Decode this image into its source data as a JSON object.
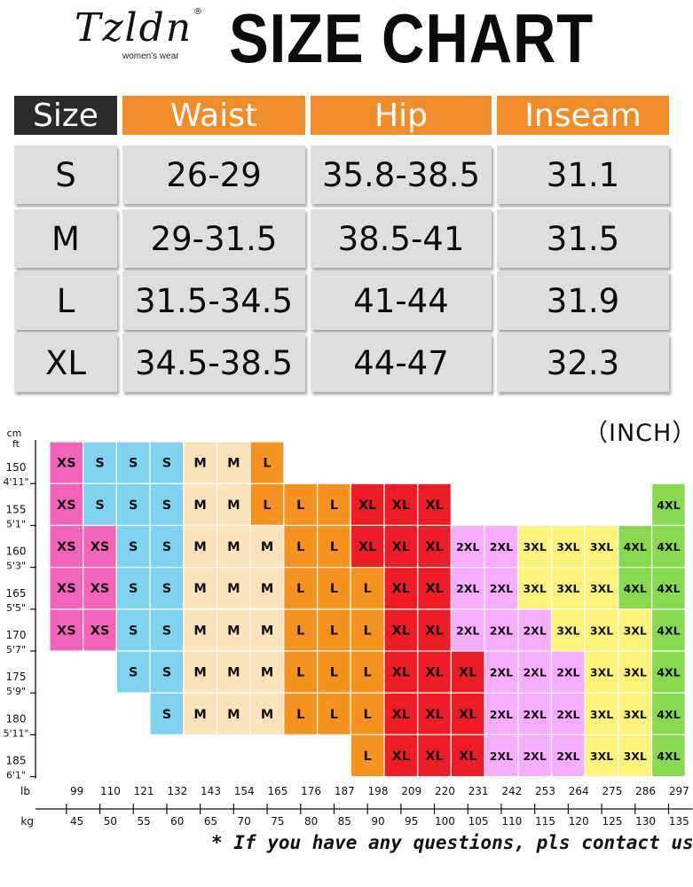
{
  "brand": {
    "name": "Tzldn",
    "registered": "®",
    "subtitle": "women's wear"
  },
  "title": "SIZE CHART",
  "unit_label": "（INCH）",
  "footnote": "* If you have any questions, pls contact us.",
  "colors": {
    "header_dark": "#2a2a2a",
    "header_orange": "#f08c2a",
    "cell_gray": "#dedede",
    "XS": "#f464bd",
    "S": "#7fd3ef",
    "M": "#fde3bb",
    "L": "#f6931f",
    "XL": "#ee1c24",
    "2XL": "#f6aefc",
    "3XL": "#fef37a",
    "4XL": "#88d94e"
  },
  "chart_data": [
    {
      "type": "table",
      "columns": [
        "Size",
        "Waist",
        "Hip",
        "Inseam"
      ],
      "rows": [
        [
          "S",
          "26-29",
          "35.8-38.5",
          "31.1"
        ],
        [
          "M",
          "29-31.5",
          "38.5-41",
          "31.5"
        ],
        [
          "L",
          "31.5-34.5",
          "41-44",
          "31.9"
        ],
        [
          "XL",
          "34.5-38.5",
          "44-47",
          "32.3"
        ]
      ]
    },
    {
      "type": "heatmap",
      "y_axis": {
        "unit_cm": "cm",
        "unit_ft": "ft",
        "cm": [
          "150",
          "155",
          "160",
          "165",
          "170",
          "175",
          "180",
          "185"
        ],
        "ft": [
          "4'11\"",
          "5'1\"",
          "5'3\"",
          "5'5\"",
          "5'7\"",
          "5'9\"",
          "5'11\"",
          "6'1\""
        ]
      },
      "x_axis": {
        "unit_lb": "lb",
        "unit_kg": "kg",
        "lb": [
          "99",
          "110",
          "121",
          "132",
          "143",
          "154",
          "165",
          "176",
          "187",
          "198",
          "209",
          "220",
          "231",
          "242",
          "253",
          "264",
          "275",
          "286",
          "297"
        ],
        "kg": [
          "45",
          "50",
          "55",
          "60",
          "65",
          "70",
          "75",
          "80",
          "85",
          "90",
          "95",
          "100",
          "105",
          "110",
          "115",
          "120",
          "125",
          "130",
          "135"
        ]
      },
      "rows": [
        [
          "XS",
          "S",
          "S",
          "S",
          "M",
          "M",
          "L",
          "",
          "",
          "",
          "",
          "",
          "",
          "",
          "",
          "",
          "",
          "",
          ""
        ],
        [
          "XS",
          "S",
          "S",
          "S",
          "M",
          "M",
          "L",
          "L",
          "L",
          "XL",
          "XL",
          "XL",
          "",
          "",
          "",
          "",
          "",
          "",
          "4XL"
        ],
        [
          "XS",
          "XS",
          "S",
          "S",
          "M",
          "M",
          "M",
          "L",
          "L",
          "XL",
          "XL",
          "XL",
          "2XL",
          "2XL",
          "3XL",
          "3XL",
          "3XL",
          "4XL",
          "4XL"
        ],
        [
          "XS",
          "XS",
          "S",
          "S",
          "M",
          "M",
          "M",
          "L",
          "L",
          "L",
          "XL",
          "XL",
          "2XL",
          "2XL",
          "3XL",
          "3XL",
          "3XL",
          "4XL",
          "4XL"
        ],
        [
          "XS",
          "XS",
          "S",
          "S",
          "M",
          "M",
          "M",
          "L",
          "L",
          "L",
          "XL",
          "XL",
          "2XL",
          "2XL",
          "2XL",
          "3XL",
          "3XL",
          "3XL",
          "4XL"
        ],
        [
          "",
          "",
          "S",
          "S",
          "M",
          "M",
          "M",
          "L",
          "L",
          "L",
          "XL",
          "XL",
          "XL",
          "2XL",
          "2XL",
          "2XL",
          "3XL",
          "3XL",
          "4XL"
        ],
        [
          "",
          "",
          "",
          "S",
          "M",
          "M",
          "M",
          "L",
          "L",
          "L",
          "XL",
          "XL",
          "XL",
          "2XL",
          "2XL",
          "2XL",
          "3XL",
          "3XL",
          "4XL"
        ],
        [
          "",
          "",
          "",
          "",
          "",
          "",
          "",
          "",
          "",
          "L",
          "XL",
          "XL",
          "XL",
          "2XL",
          "2XL",
          "2XL",
          "3XL",
          "3XL",
          "4XL"
        ]
      ]
    }
  ]
}
